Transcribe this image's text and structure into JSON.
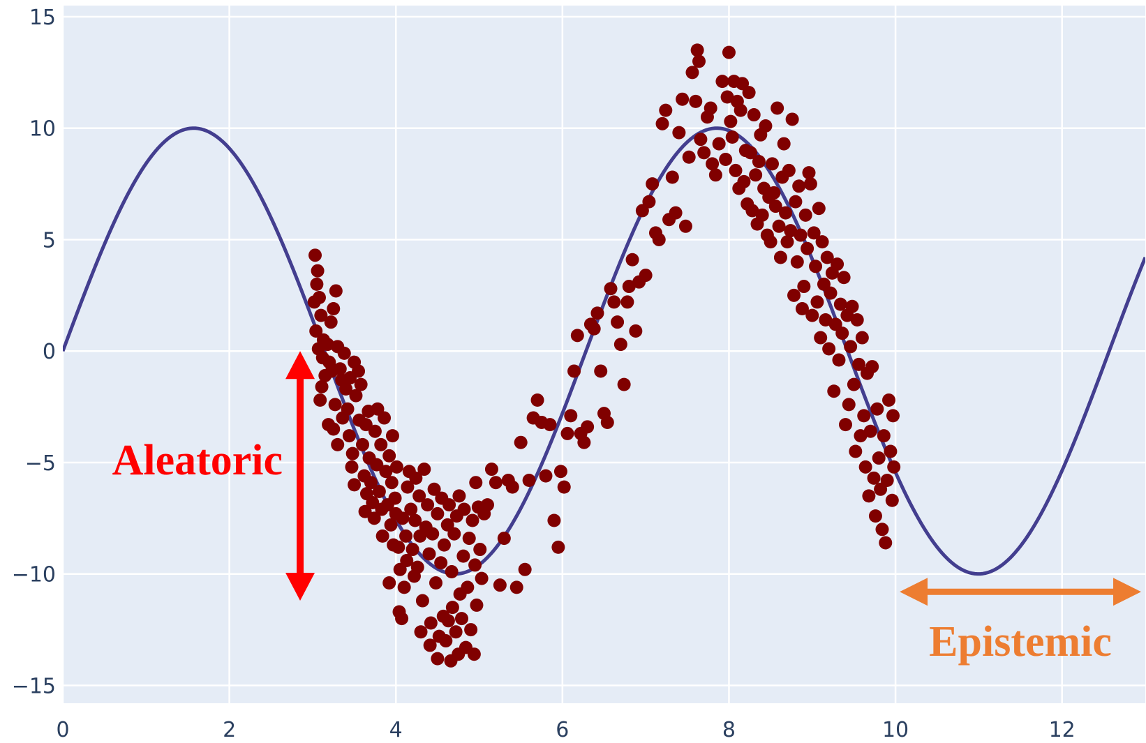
{
  "chart_data": {
    "type": "scatter",
    "title": "",
    "xlabel": "",
    "ylabel": "",
    "xlim": [
      0,
      13
    ],
    "ylim": [
      -15.8,
      15.5
    ],
    "grid": true,
    "x_ticks": [
      0,
      2,
      4,
      6,
      8,
      10,
      12
    ],
    "y_ticks": [
      -15,
      -10,
      -5,
      0,
      5,
      10,
      15
    ],
    "x_tick_labels": [
      "0",
      "2",
      "4",
      "6",
      "8",
      "10",
      "12"
    ],
    "y_tick_labels": [
      "−15",
      "−10",
      "−5",
      "0",
      "5",
      "10",
      "15"
    ],
    "colors": {
      "plot_bg": "#e5ecf6",
      "grid": "#ffffff",
      "line": "#433e8f",
      "points": "#800000",
      "aleatoric": "#ff0000",
      "epistemic": "#ed7d31"
    },
    "series": [
      {
        "type": "line",
        "function": "10*sin(x)",
        "x_range": [
          0,
          13
        ]
      },
      {
        "type": "scatter",
        "points": [
          [
            3.03,
            4.3
          ],
          [
            3.06,
            3.6
          ],
          [
            3.05,
            3.0
          ],
          [
            3.02,
            2.2
          ],
          [
            3.08,
            2.4
          ],
          [
            3.1,
            1.6
          ],
          [
            3.04,
            0.9
          ],
          [
            3.13,
            0.5
          ],
          [
            3.07,
            0.1
          ],
          [
            3.12,
            -0.3
          ],
          [
            3.15,
            -1.1
          ],
          [
            3.11,
            -1.6
          ],
          [
            3.09,
            -2.2
          ],
          [
            3.18,
            0.3
          ],
          [
            3.2,
            -0.5
          ],
          [
            3.22,
            1.3
          ],
          [
            3.25,
            1.9
          ],
          [
            3.23,
            -0.9
          ],
          [
            3.28,
            2.7
          ],
          [
            3.3,
            0.2
          ],
          [
            3.19,
            -3.3
          ],
          [
            3.25,
            -3.5
          ],
          [
            3.3,
            -4.2
          ],
          [
            3.27,
            -2.4
          ],
          [
            3.35,
            -1.3
          ],
          [
            3.33,
            -0.8
          ],
          [
            3.38,
            -0.1
          ],
          [
            3.4,
            -1.7
          ],
          [
            3.36,
            -3.0
          ],
          [
            3.42,
            -2.6
          ],
          [
            3.45,
            -1.2
          ],
          [
            3.44,
            -3.8
          ],
          [
            3.48,
            -4.6
          ],
          [
            3.5,
            -0.5
          ],
          [
            3.52,
            -2.0
          ],
          [
            3.55,
            -0.9
          ],
          [
            3.47,
            -5.2
          ],
          [
            3.5,
            -6.0
          ],
          [
            3.56,
            -3.1
          ],
          [
            3.58,
            -1.5
          ],
          [
            3.6,
            -4.2
          ],
          [
            3.62,
            -5.6
          ],
          [
            3.64,
            -3.3
          ],
          [
            3.65,
            -6.4
          ],
          [
            3.67,
            -2.7
          ],
          [
            3.63,
            -7.2
          ],
          [
            3.68,
            -4.8
          ],
          [
            3.7,
            -5.9
          ],
          [
            3.72,
            -6.8
          ],
          [
            3.75,
            -3.6
          ],
          [
            3.74,
            -7.5
          ],
          [
            3.77,
            -5.1
          ],
          [
            3.78,
            -2.6
          ],
          [
            3.8,
            -6.3
          ],
          [
            3.82,
            -4.2
          ],
          [
            3.84,
            -8.3
          ],
          [
            3.83,
            -7.1
          ],
          [
            3.86,
            -3.0
          ],
          [
            3.88,
            -5.4
          ],
          [
            3.9,
            -6.9
          ],
          [
            3.92,
            -4.7
          ],
          [
            3.94,
            -7.8
          ],
          [
            3.95,
            -5.9
          ],
          [
            3.97,
            -8.7
          ],
          [
            3.96,
            -3.8
          ],
          [
            3.99,
            -6.6
          ],
          [
            4.01,
            -5.2
          ],
          [
            4.0,
            -7.3
          ],
          [
            3.92,
            -10.4
          ],
          [
            4.03,
            -8.8
          ],
          [
            4.05,
            -9.8
          ],
          [
            4.04,
            -11.7
          ],
          [
            4.07,
            -12.0
          ],
          [
            4.08,
            -7.5
          ],
          [
            4.1,
            -10.6
          ],
          [
            4.12,
            -8.3
          ],
          [
            4.14,
            -6.1
          ],
          [
            4.13,
            -9.4
          ],
          [
            4.16,
            -5.4
          ],
          [
            4.18,
            -7.1
          ],
          [
            4.2,
            -8.9
          ],
          [
            4.22,
            -10.1
          ],
          [
            4.24,
            -5.7
          ],
          [
            4.23,
            -7.6
          ],
          [
            4.26,
            -9.7
          ],
          [
            4.28,
            -6.5
          ],
          [
            4.3,
            -12.6
          ],
          [
            4.29,
            -8.3
          ],
          [
            4.32,
            -11.2
          ],
          [
            4.34,
            -5.3
          ],
          [
            4.36,
            -7.9
          ],
          [
            4.38,
            -6.9
          ],
          [
            4.4,
            -9.1
          ],
          [
            4.42,
            -12.2
          ],
          [
            4.41,
            -13.2
          ],
          [
            4.44,
            -8.2
          ],
          [
            4.46,
            -6.2
          ],
          [
            4.48,
            -10.4
          ],
          [
            4.5,
            -7.3
          ],
          [
            4.5,
            -13.8
          ],
          [
            4.52,
            -12.8
          ],
          [
            4.54,
            -9.5
          ],
          [
            4.55,
            -6.6
          ],
          [
            4.57,
            -11.9
          ],
          [
            4.58,
            -8.7
          ],
          [
            4.6,
            -13.0
          ],
          [
            4.62,
            -7.8
          ],
          [
            4.63,
            -12.1
          ],
          [
            4.64,
            -6.9
          ],
          [
            4.66,
            -13.9
          ],
          [
            4.67,
            -9.9
          ],
          [
            4.68,
            -11.5
          ],
          [
            4.7,
            -8.2
          ],
          [
            4.72,
            -12.6
          ],
          [
            4.73,
            -7.4
          ],
          [
            4.75,
            -13.6
          ],
          [
            4.77,
            -10.9
          ],
          [
            4.76,
            -6.5
          ],
          [
            4.79,
            -12.0
          ],
          [
            4.81,
            -9.2
          ],
          [
            4.82,
            -7.1
          ],
          [
            4.84,
            -13.3
          ],
          [
            4.86,
            -10.6
          ],
          [
            4.88,
            -8.4
          ],
          [
            4.9,
            -12.5
          ],
          [
            4.92,
            -7.6
          ],
          [
            4.94,
            -13.6
          ],
          [
            4.95,
            -9.6
          ],
          [
            4.97,
            -11.4
          ],
          [
            4.99,
            -7.0
          ],
          [
            4.96,
            -5.9
          ],
          [
            5.01,
            -8.9
          ],
          [
            5.03,
            -10.2
          ],
          [
            5.06,
            -7.3
          ],
          [
            5.1,
            -6.9
          ],
          [
            5.15,
            -5.3
          ],
          [
            5.2,
            -5.9
          ],
          [
            5.25,
            -10.5
          ],
          [
            5.3,
            -8.4
          ],
          [
            5.35,
            -5.8
          ],
          [
            5.4,
            -6.1
          ],
          [
            5.45,
            -10.6
          ],
          [
            5.5,
            -4.1
          ],
          [
            5.55,
            -9.8
          ],
          [
            5.6,
            -5.8
          ],
          [
            5.65,
            -3.0
          ],
          [
            5.7,
            -2.2
          ],
          [
            5.75,
            -3.2
          ],
          [
            5.8,
            -5.6
          ],
          [
            5.85,
            -3.3
          ],
          [
            5.9,
            -7.6
          ],
          [
            5.95,
            -8.8
          ],
          [
            5.98,
            -5.4
          ],
          [
            6.02,
            -6.1
          ],
          [
            6.06,
            -3.7
          ],
          [
            6.1,
            -2.9
          ],
          [
            6.14,
            -0.9
          ],
          [
            6.18,
            0.7
          ],
          [
            6.22,
            -3.7
          ],
          [
            6.26,
            -4.1
          ],
          [
            6.3,
            -3.4
          ],
          [
            6.34,
            1.2
          ],
          [
            6.38,
            1.0
          ],
          [
            6.42,
            1.7
          ],
          [
            6.46,
            -0.9
          ],
          [
            6.5,
            -2.8
          ],
          [
            6.54,
            -3.2
          ],
          [
            6.58,
            2.8
          ],
          [
            6.62,
            2.2
          ],
          [
            6.66,
            1.3
          ],
          [
            6.7,
            0.3
          ],
          [
            6.74,
            -1.5
          ],
          [
            6.78,
            2.2
          ],
          [
            6.8,
            2.9
          ],
          [
            6.84,
            4.1
          ],
          [
            6.88,
            0.9
          ],
          [
            6.92,
            3.1
          ],
          [
            6.96,
            6.3
          ],
          [
            7.0,
            3.4
          ],
          [
            7.04,
            6.7
          ],
          [
            7.08,
            7.5
          ],
          [
            7.12,
            5.3
          ],
          [
            7.16,
            5.0
          ],
          [
            7.2,
            10.2
          ],
          [
            7.24,
            10.8
          ],
          [
            7.28,
            5.9
          ],
          [
            7.32,
            7.8
          ],
          [
            7.36,
            6.2
          ],
          [
            7.4,
            9.8
          ],
          [
            7.44,
            11.3
          ],
          [
            7.48,
            5.6
          ],
          [
            7.52,
            8.7
          ],
          [
            7.56,
            12.5
          ],
          [
            7.6,
            11.2
          ],
          [
            7.62,
            13.5
          ],
          [
            7.64,
            13.0
          ],
          [
            7.66,
            9.5
          ],
          [
            7.7,
            8.9
          ],
          [
            7.74,
            10.5
          ],
          [
            7.78,
            10.9
          ],
          [
            7.8,
            8.4
          ],
          [
            7.84,
            7.9
          ],
          [
            7.88,
            9.3
          ],
          [
            7.92,
            12.1
          ],
          [
            7.96,
            8.6
          ],
          [
            7.98,
            11.4
          ],
          [
            8.0,
            13.4
          ],
          [
            8.02,
            10.3
          ],
          [
            8.04,
            9.6
          ],
          [
            8.06,
            12.1
          ],
          [
            8.08,
            8.1
          ],
          [
            8.1,
            11.2
          ],
          [
            8.12,
            7.3
          ],
          [
            8.14,
            10.8
          ],
          [
            8.16,
            12.0
          ],
          [
            8.18,
            7.6
          ],
          [
            8.2,
            9.0
          ],
          [
            8.22,
            6.6
          ],
          [
            8.24,
            11.6
          ],
          [
            8.26,
            8.9
          ],
          [
            8.28,
            6.3
          ],
          [
            8.3,
            10.6
          ],
          [
            8.32,
            7.9
          ],
          [
            8.34,
            5.7
          ],
          [
            8.36,
            8.5
          ],
          [
            8.38,
            9.7
          ],
          [
            8.4,
            6.1
          ],
          [
            8.42,
            7.3
          ],
          [
            8.44,
            10.1
          ],
          [
            8.46,
            5.2
          ],
          [
            8.48,
            6.9
          ],
          [
            8.5,
            4.9
          ],
          [
            8.52,
            8.4
          ],
          [
            8.54,
            7.1
          ],
          [
            8.56,
            6.5
          ],
          [
            8.58,
            10.9
          ],
          [
            8.6,
            5.6
          ],
          [
            8.62,
            4.2
          ],
          [
            8.64,
            7.8
          ],
          [
            8.66,
            9.3
          ],
          [
            8.68,
            6.2
          ],
          [
            8.7,
            4.9
          ],
          [
            8.72,
            8.1
          ],
          [
            8.74,
            5.4
          ],
          [
            8.76,
            10.4
          ],
          [
            8.78,
            2.5
          ],
          [
            8.8,
            6.7
          ],
          [
            8.82,
            4.0
          ],
          [
            8.84,
            7.4
          ],
          [
            8.86,
            5.2
          ],
          [
            8.88,
            1.9
          ],
          [
            8.9,
            2.9
          ],
          [
            8.92,
            6.1
          ],
          [
            8.94,
            4.6
          ],
          [
            8.96,
            8.0
          ],
          [
            8.98,
            7.5
          ],
          [
            9.0,
            1.6
          ],
          [
            9.02,
            5.3
          ],
          [
            9.04,
            3.8
          ],
          [
            9.06,
            2.2
          ],
          [
            9.08,
            6.4
          ],
          [
            9.1,
            0.6
          ],
          [
            9.12,
            4.9
          ],
          [
            9.14,
            3.0
          ],
          [
            9.16,
            1.4
          ],
          [
            9.18,
            4.2
          ],
          [
            9.2,
            0.1
          ],
          [
            9.22,
            2.6
          ],
          [
            9.24,
            3.5
          ],
          [
            9.26,
            -1.8
          ],
          [
            9.28,
            1.2
          ],
          [
            9.3,
            3.9
          ],
          [
            9.32,
            -0.4
          ],
          [
            9.34,
            2.1
          ],
          [
            9.36,
            0.8
          ],
          [
            9.38,
            3.3
          ],
          [
            9.4,
            -3.3
          ],
          [
            9.42,
            1.6
          ],
          [
            9.44,
            -2.4
          ],
          [
            9.46,
            0.2
          ],
          [
            9.48,
            2.0
          ],
          [
            9.5,
            -1.5
          ],
          [
            9.52,
            -4.5
          ],
          [
            9.54,
            1.4
          ],
          [
            9.56,
            -0.6
          ],
          [
            9.58,
            -3.8
          ],
          [
            9.6,
            0.6
          ],
          [
            9.62,
            -2.9
          ],
          [
            9.64,
            -5.2
          ],
          [
            9.66,
            -1.0
          ],
          [
            9.68,
            -6.5
          ],
          [
            9.7,
            -3.6
          ],
          [
            9.72,
            -0.7
          ],
          [
            9.74,
            -5.7
          ],
          [
            9.76,
            -7.4
          ],
          [
            9.78,
            -2.6
          ],
          [
            9.8,
            -4.8
          ],
          [
            9.82,
            -6.2
          ],
          [
            9.84,
            -8.0
          ],
          [
            9.86,
            -3.8
          ],
          [
            9.88,
            -8.6
          ],
          [
            9.9,
            -5.8
          ],
          [
            9.92,
            -2.2
          ],
          [
            9.94,
            -4.5
          ],
          [
            9.96,
            -6.7
          ],
          [
            9.97,
            -2.9
          ],
          [
            9.98,
            -5.2
          ]
        ]
      }
    ],
    "annotations": [
      {
        "text": "Aleatoric",
        "color": "#ff0000",
        "arrow": "vertical-double",
        "x": 2.85,
        "y_from": 0,
        "y_to": -11.2
      },
      {
        "text": "Epistemic",
        "color": "#ed7d31",
        "arrow": "horizontal-double",
        "y": -10.8,
        "x_from": 10.05,
        "x_to": 12.95
      }
    ]
  }
}
